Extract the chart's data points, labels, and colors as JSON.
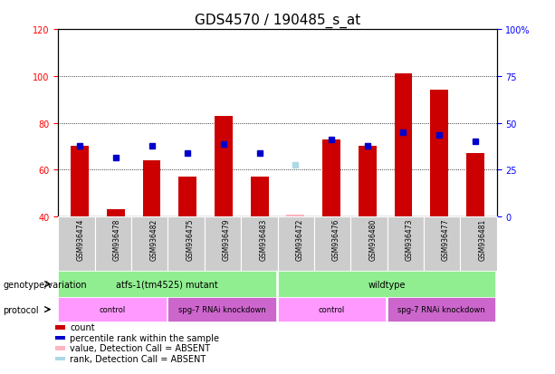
{
  "title": "GDS4570 / 190485_s_at",
  "samples": [
    "GSM936474",
    "GSM936478",
    "GSM936482",
    "GSM936475",
    "GSM936479",
    "GSM936483",
    "GSM936472",
    "GSM936476",
    "GSM936480",
    "GSM936473",
    "GSM936477",
    "GSM936481"
  ],
  "bar_values": [
    70,
    43,
    64,
    57,
    83,
    57,
    41,
    73,
    70,
    101,
    94,
    67
  ],
  "dot_values": [
    70,
    65,
    70,
    67,
    71,
    67,
    62,
    73,
    70,
    76,
    75,
    72
  ],
  "absent_bar": [
    false,
    false,
    false,
    false,
    false,
    false,
    true,
    false,
    false,
    false,
    false,
    false
  ],
  "absent_dot": [
    false,
    false,
    false,
    false,
    false,
    false,
    true,
    false,
    false,
    false,
    false,
    false
  ],
  "bar_color_present": "#cc0000",
  "bar_color_absent": "#FFB6C1",
  "dot_color_present": "#0000cc",
  "dot_color_absent": "#ADD8E6",
  "ylim_left": [
    40,
    120
  ],
  "ylim_right": [
    0,
    100
  ],
  "yticks_left": [
    40,
    60,
    80,
    100,
    120
  ],
  "yticks_right": [
    0,
    25,
    50,
    75,
    100
  ],
  "ytick_labels_right": [
    "0",
    "25",
    "50",
    "75",
    "100%"
  ],
  "genotype_groups": [
    {
      "label": "atfs-1(tm4525) mutant",
      "start": 0,
      "end": 6,
      "color": "#90EE90"
    },
    {
      "label": "wildtype",
      "start": 6,
      "end": 12,
      "color": "#90EE90"
    }
  ],
  "protocol_groups": [
    {
      "label": "control",
      "start": 0,
      "end": 3,
      "color": "#FF99FF"
    },
    {
      "label": "spg-7 RNAi knockdown",
      "start": 3,
      "end": 6,
      "color": "#CC66CC"
    },
    {
      "label": "control",
      "start": 6,
      "end": 9,
      "color": "#FF99FF"
    },
    {
      "label": "spg-7 RNAi knockdown",
      "start": 9,
      "end": 12,
      "color": "#CC66CC"
    }
  ],
  "legend_items": [
    {
      "color": "#cc0000",
      "label": "count"
    },
    {
      "color": "#0000cc",
      "label": "percentile rank within the sample"
    },
    {
      "color": "#FFB6C1",
      "label": "value, Detection Call = ABSENT"
    },
    {
      "color": "#ADD8E6",
      "label": "rank, Detection Call = ABSENT"
    }
  ],
  "title_fontsize": 11,
  "tick_fontsize": 7,
  "label_fontsize": 7
}
